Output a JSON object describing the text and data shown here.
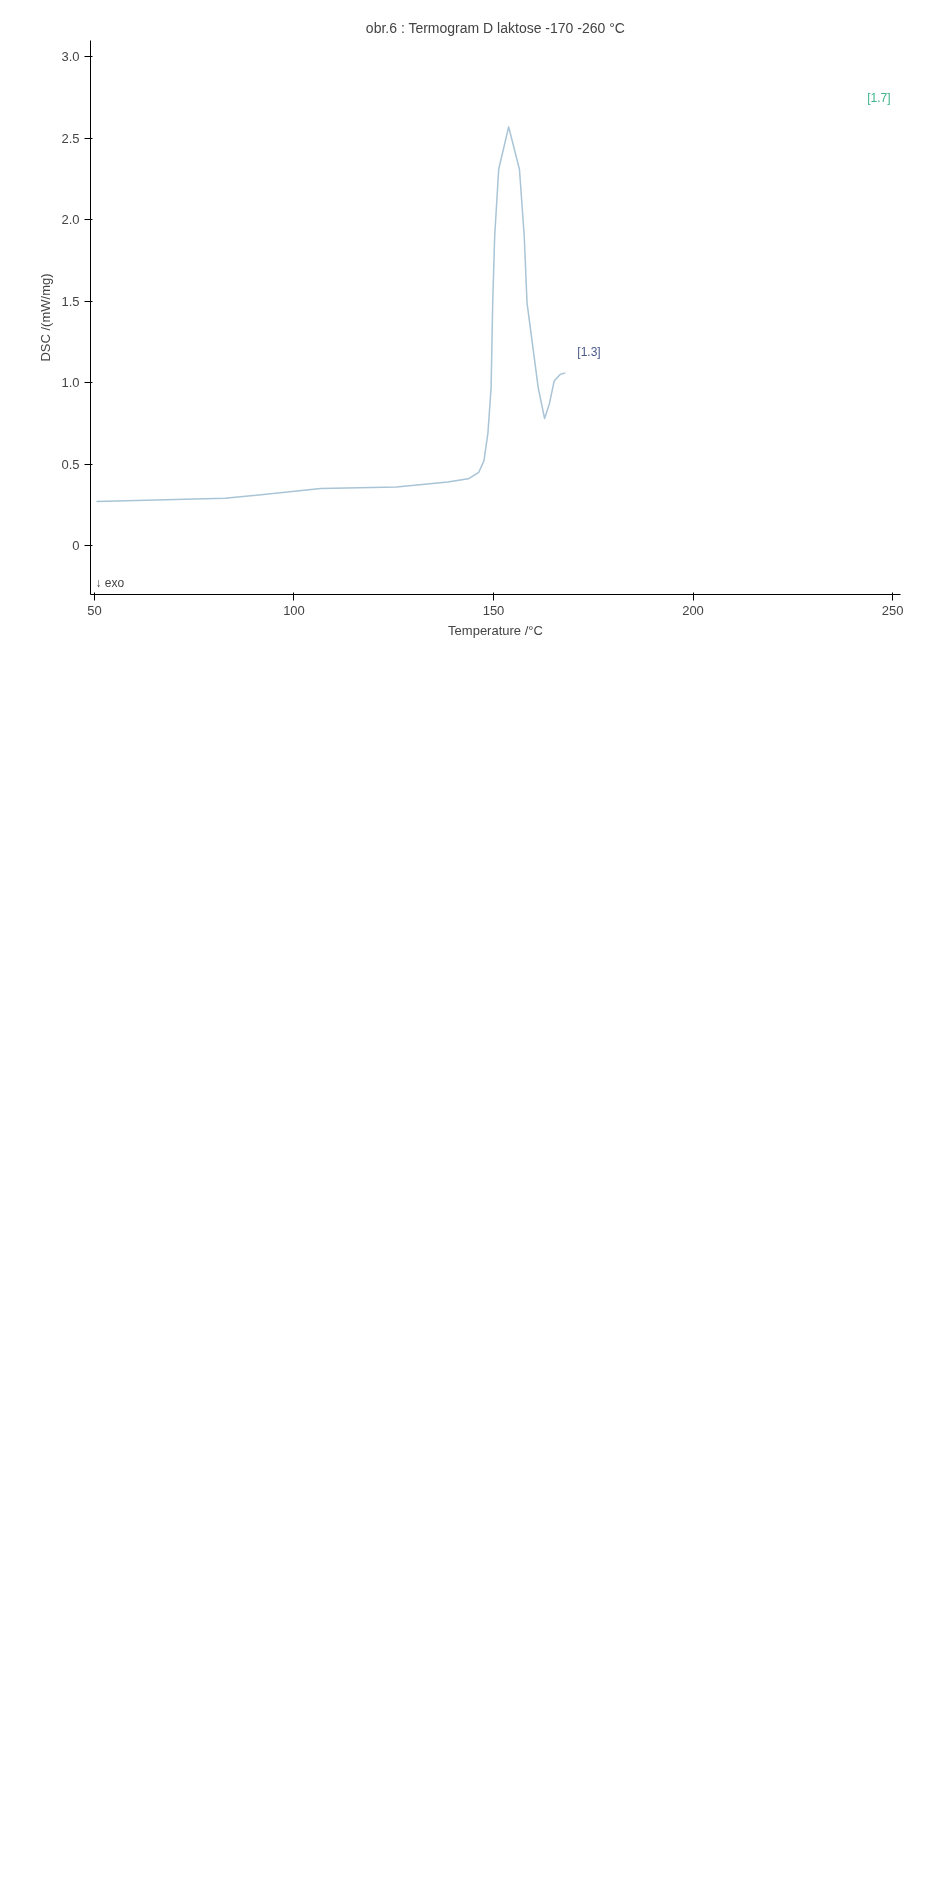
{
  "chart_data": {
    "type": "line",
    "title": "obr.6 : Termogram D laktose -170 -260 °C",
    "xlabel": "Temperature /°C",
    "ylabel": "DSC /(mW/mg)",
    "annotations": [
      "↓ exo",
      "[1.3]",
      "[1.7]"
    ],
    "series": [
      {
        "color": "#a9c4d6",
        "x": [
          50.5,
          82.7,
          106.7,
          125.7,
          138.5,
          143.7,
          146.3,
          147.6,
          148.6,
          149.4,
          149.8,
          150.3,
          151.3,
          153.8,
          156.5,
          157.7,
          158.4,
          161.2,
          162.8,
          164.0,
          165.2,
          166.7,
          168.0
        ],
        "values": [
          0.27,
          0.29,
          0.35,
          0.36,
          0.39,
          0.41,
          0.45,
          0.52,
          0.69,
          0.97,
          1.49,
          1.9,
          2.31,
          2.57,
          2.31,
          1.9,
          1.49,
          0.97,
          0.78,
          0.87,
          1.01,
          1.05,
          1.06
        ]
      }
    ],
    "xlim": [
      49,
      252
    ],
    "xticks": [
      50,
      100,
      150,
      200,
      250
    ],
    "ylim": [
      -0.3,
      3.1
    ],
    "yticks": [
      0,
      {
        "value": 0.5,
        "label": "0.5"
      },
      {
        "value": 1,
        "label": "1.0"
      },
      {
        "value": 1.5,
        "label": "1.5"
      },
      {
        "value": 2,
        "label": "2.0"
      },
      {
        "value": 2.5,
        "label": "2.5"
      },
      {
        "value": 3,
        "label": "3.0"
      }
    ],
    "grid": false
  }
}
